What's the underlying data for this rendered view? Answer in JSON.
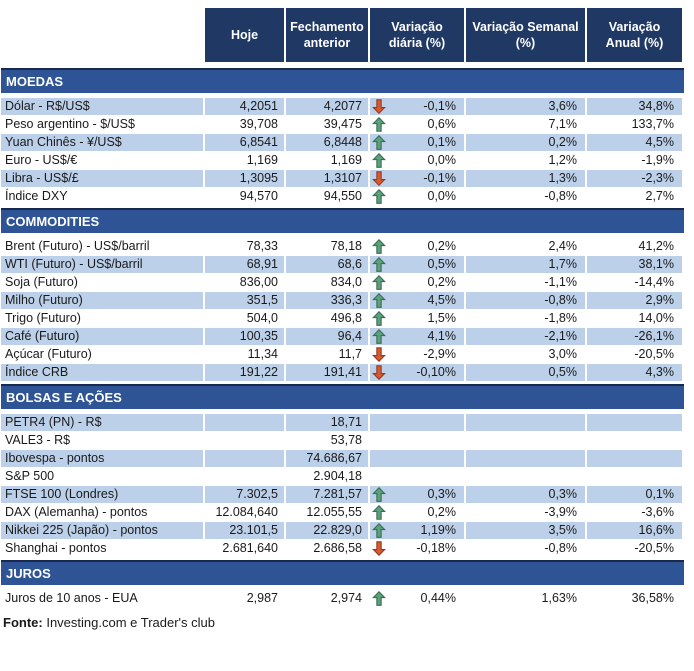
{
  "header": {
    "columns": [
      "Hoje",
      "Fechamento anterior",
      "Variação diária (%)",
      "Variação Semanal (%)",
      "Variação Anual (%)"
    ]
  },
  "sections": [
    {
      "title": "MOEDAS",
      "rows": [
        {
          "label": "Dólar - R$/US$",
          "hoje": "4,2051",
          "fechamento": "4,2077",
          "arrow": "down",
          "var_diaria": "-0,1%",
          "var_semanal": "3,6%",
          "var_anual": "34,8%"
        },
        {
          "label": "Peso argentino - $/US$",
          "hoje": "39,708",
          "fechamento": "39,475",
          "arrow": "up",
          "var_diaria": "0,6%",
          "var_semanal": "7,1%",
          "var_anual": "133,7%"
        },
        {
          "label": "Yuan Chinês - ¥/US$",
          "hoje": "6,8541",
          "fechamento": "6,8448",
          "arrow": "up",
          "var_diaria": "0,1%",
          "var_semanal": "0,2%",
          "var_anual": "4,5%"
        },
        {
          "label": "Euro - US$/€",
          "hoje": "1,169",
          "fechamento": "1,169",
          "arrow": "up",
          "var_diaria": "0,0%",
          "var_semanal": "1,2%",
          "var_anual": "-1,9%"
        },
        {
          "label": "Libra - US$/£",
          "hoje": "1,3095",
          "fechamento": "1,3107",
          "arrow": "down",
          "var_diaria": "-0,1%",
          "var_semanal": "1,3%",
          "var_anual": "-2,3%"
        },
        {
          "label": "Índice DXY",
          "hoje": "94,570",
          "fechamento": "94,550",
          "arrow": "up",
          "var_diaria": "0,0%",
          "var_semanal": "-0,8%",
          "var_anual": "2,7%"
        }
      ]
    },
    {
      "title": "COMMODITIES",
      "rows": [
        {
          "label": "Brent (Futuro) - US$/barril",
          "hoje": "78,33",
          "fechamento": "78,18",
          "arrow": "up",
          "var_diaria": "0,2%",
          "var_semanal": "2,4%",
          "var_anual": "41,2%"
        },
        {
          "label": "WTI (Futuro) - US$/barril",
          "hoje": "68,91",
          "fechamento": "68,6",
          "arrow": "up",
          "var_diaria": "0,5%",
          "var_semanal": "1,7%",
          "var_anual": "38,1%"
        },
        {
          "label": "Soja (Futuro)",
          "hoje": "836,00",
          "fechamento": "834,0",
          "arrow": "up",
          "var_diaria": "0,2%",
          "var_semanal": "-1,1%",
          "var_anual": "-14,4%"
        },
        {
          "label": "Milho (Futuro)",
          "hoje": "351,5",
          "fechamento": "336,3",
          "arrow": "up",
          "var_diaria": "4,5%",
          "var_semanal": "-0,8%",
          "var_anual": "2,9%"
        },
        {
          "label": "Trigo (Futuro)",
          "hoje": "504,0",
          "fechamento": "496,8",
          "arrow": "up",
          "var_diaria": "1,5%",
          "var_semanal": "-1,8%",
          "var_anual": "14,0%"
        },
        {
          "label": "Café (Futuro)",
          "hoje": "100,35",
          "fechamento": "96,4",
          "arrow": "up",
          "var_diaria": "4,1%",
          "var_semanal": "-2,1%",
          "var_anual": "-26,1%"
        },
        {
          "label": "Açúcar (Futuro)",
          "hoje": "11,34",
          "fechamento": "11,7",
          "arrow": "down",
          "var_diaria": "-2,9%",
          "var_semanal": "3,0%",
          "var_anual": "-20,5%"
        },
        {
          "label": "Índice CRB",
          "hoje": "191,22",
          "fechamento": "191,41",
          "arrow": "down",
          "var_diaria": "-0,10%",
          "var_semanal": "0,5%",
          "var_anual": "4,3%"
        }
      ]
    },
    {
      "title": "BOLSAS E AÇÕES",
      "rows": [
        {
          "label": "PETR4 (PN) - R$",
          "hoje": "",
          "fechamento": "18,71",
          "arrow": "",
          "var_diaria": "",
          "var_semanal": "",
          "var_anual": ""
        },
        {
          "label": "VALE3 - R$",
          "hoje": "",
          "fechamento": "53,78",
          "arrow": "",
          "var_diaria": "",
          "var_semanal": "",
          "var_anual": ""
        },
        {
          "label": "Ibovespa - pontos",
          "hoje": "",
          "fechamento": "74.686,67",
          "arrow": "",
          "var_diaria": "",
          "var_semanal": "",
          "var_anual": ""
        },
        {
          "label": "S&P 500",
          "hoje": "",
          "fechamento": "2.904,18",
          "arrow": "",
          "var_diaria": "",
          "var_semanal": "",
          "var_anual": ""
        },
        {
          "label": "FTSE 100 (Londres)",
          "hoje": "7.302,5",
          "fechamento": "7.281,57",
          "arrow": "up",
          "var_diaria": "0,3%",
          "var_semanal": "0,3%",
          "var_anual": "0,1%"
        },
        {
          "label": "DAX (Alemanha) - pontos",
          "hoje": "12.084,640",
          "fechamento": "12.055,55",
          "arrow": "up",
          "var_diaria": "0,2%",
          "var_semanal": "-3,9%",
          "var_anual": "-3,6%"
        },
        {
          "label": "Nikkei 225 (Japão) - pontos",
          "hoje": "23.101,5",
          "fechamento": "22.829,0",
          "arrow": "up",
          "var_diaria": "1,19%",
          "var_semanal": "3,5%",
          "var_anual": "16,6%"
        },
        {
          "label": "Shanghai - pontos",
          "hoje": "2.681,640",
          "fechamento": "2.686,58",
          "arrow": "down",
          "var_diaria": "-0,18%",
          "var_semanal": "-0,8%",
          "var_anual": "-20,5%"
        }
      ]
    },
    {
      "title": "JUROS",
      "rows": [
        {
          "label": "Juros de 10 anos - EUA",
          "hoje": "2,987",
          "fechamento": "2,974",
          "arrow": "up",
          "var_diaria": "0,44%",
          "var_semanal": "1,63%",
          "var_anual": "36,58%"
        }
      ]
    }
  ],
  "footer": {
    "source_label": "Fonte:",
    "source_text": " Investing.com e Trader's club"
  },
  "colors": {
    "header_bg": "#1F3864",
    "band_bg": "#2F5496",
    "row_shaded": "#BCD0EA",
    "arrow_up_fill": "#5CA17D",
    "arrow_up_stroke": "#3A6E54",
    "arrow_down_fill": "#D65B32",
    "arrow_down_stroke": "#97391C"
  }
}
